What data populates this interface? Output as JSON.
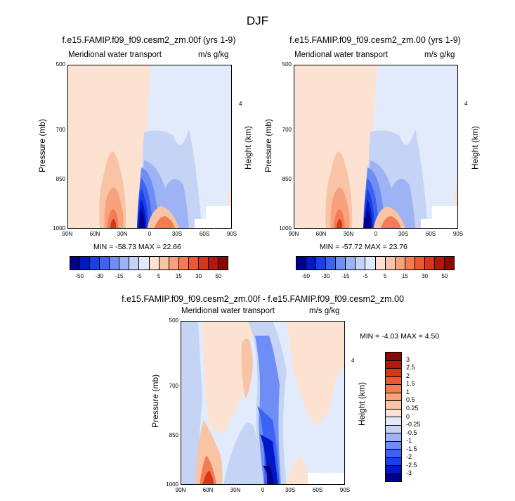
{
  "title": "DJF",
  "colors": [
    "#00008b",
    "#0019c4",
    "#1a3fe6",
    "#3d63f2",
    "#6f8ef5",
    "#9db3f4",
    "#c5d3f5",
    "#e2ebfb",
    "#fde2d1",
    "#f9c4a6",
    "#f7a27f",
    "#f47b53",
    "#eb5a2e",
    "#d5371a",
    "#b2180e",
    "#870a05"
  ],
  "panels": [
    {
      "id": "panel-1",
      "title": "f.e15.FAMIP.f09_f09.cesm2_zm.00f (yrs 1-9)",
      "left_label": "Meridional water transport",
      "right_label": "m/s g/kg",
      "ylabel": "Pressure (mb)",
      "right_axis_label": "Height (km)",
      "right_axis_tick": "4",
      "yticks": [
        "500",
        "700",
        "850",
        "1000"
      ],
      "xticks": [
        "90N",
        "60N",
        "30N",
        "0",
        "30S",
        "60S",
        "90S"
      ],
      "minmax": "MIN = -58.73  MAX = 22.66",
      "colorbar_labels": [
        "-50",
        "-30",
        "-15",
        "-5",
        "5",
        "15",
        "30",
        "50"
      ]
    },
    {
      "id": "panel-2",
      "title": "f.e15.FAMIP.f09_f09.cesm2_zm.00 (yrs 1-9)",
      "left_label": "Meridional water transport",
      "right_label": "m/s g/kg",
      "ylabel": "Pressure (mb)",
      "right_axis_label": "Height (km)",
      "right_axis_tick": "4",
      "yticks": [
        "500",
        "700",
        "850",
        "1000"
      ],
      "xticks": [
        "90N",
        "60N",
        "30N",
        "0",
        "30S",
        "60S",
        "90S"
      ],
      "minmax": "MIN = -57.72  MAX = 23.76",
      "colorbar_labels": [
        "-50",
        "-30",
        "-15",
        "-5",
        "5",
        "15",
        "30",
        "50"
      ]
    },
    {
      "id": "panel-3",
      "title": "f.e15.FAMIP.f09_f09.cesm2_zm.00f - f.e15.FAMIP.f09_f09.cesm2_zm.00",
      "left_label": "Meridional water transport",
      "right_label": "m/s g/kg",
      "ylabel": "Pressure (mb)",
      "right_axis_label": "Height (km)",
      "right_axis_tick": "4",
      "yticks": [
        "500",
        "700",
        "850",
        "1000"
      ],
      "xticks": [
        "90N",
        "60N",
        "30N",
        "0",
        "30S",
        "60S",
        "90S"
      ],
      "minmax": "MIN =  -4.03  MAX =  4.50",
      "colorbar_labels": [
        "3",
        "2.5",
        "2",
        "1.5",
        "1",
        "0.5",
        "0.25",
        "0",
        "-0.25",
        "-0.5",
        "-1",
        "-1.5",
        "-2",
        "-2.5",
        "-3"
      ]
    }
  ],
  "chart_data": [
    {
      "type": "heatmap",
      "title": "f.e15.FAMIP.f09_f09.cesm2_zm.00f (yrs 1-9)",
      "xlabel": "",
      "ylabel": "Pressure (mb)",
      "xlim": [
        90,
        -90
      ],
      "ylim": [
        1000,
        500
      ],
      "units": "m/s g/kg",
      "levels": [
        -50,
        -40,
        -30,
        -20,
        -15,
        -10,
        -5,
        0,
        5,
        10,
        15,
        20,
        30,
        40,
        50
      ],
      "min": -58.73,
      "max": 22.66
    },
    {
      "type": "heatmap",
      "title": "f.e15.FAMIP.f09_f09.cesm2_zm.00 (yrs 1-9)",
      "xlabel": "",
      "ylabel": "Pressure (mb)",
      "xlim": [
        90,
        -90
      ],
      "ylim": [
        1000,
        500
      ],
      "units": "m/s g/kg",
      "levels": [
        -50,
        -40,
        -30,
        -20,
        -15,
        -10,
        -5,
        0,
        5,
        10,
        15,
        20,
        30,
        40,
        50
      ],
      "min": -57.72,
      "max": 23.76
    },
    {
      "type": "heatmap",
      "title": "f.e15.FAMIP.f09_f09.cesm2_zm.00f - f.e15.FAMIP.f09_f09.cesm2_zm.00",
      "xlabel": "",
      "ylabel": "Pressure (mb)",
      "xlim": [
        90,
        -90
      ],
      "ylim": [
        1000,
        500
      ],
      "units": "m/s g/kg",
      "levels": [
        -3,
        -2.5,
        -2,
        -1.5,
        -1,
        -0.5,
        -0.25,
        0,
        0.25,
        0.5,
        1,
        1.5,
        2,
        2.5,
        3
      ],
      "min": -4.03,
      "max": 4.5
    }
  ]
}
